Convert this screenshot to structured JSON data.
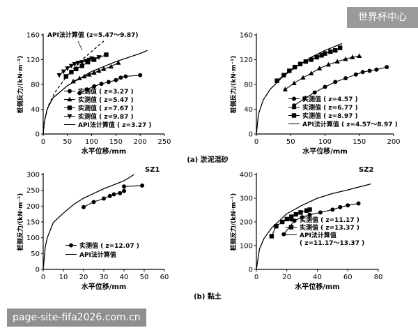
{
  "watermarks": {
    "top_right": "世界杯中心",
    "bottom_left": "page-site-fifa2026.com.cn"
  },
  "captions": {
    "a": "(a) 淤泥混砂",
    "b": "(b) 黏土"
  },
  "chart_data": [
    {
      "type": "line",
      "ylabel": "桩侧反力/(kN·m⁻¹)",
      "xlabel": "水平位移/mm",
      "xlim": [
        0,
        250
      ],
      "ylim": [
        0,
        160
      ],
      "xticks": [
        "0",
        "50",
        "100",
        "150",
        "200",
        "250"
      ],
      "yticks": [
        "0",
        "40",
        "80",
        "120",
        "160"
      ],
      "series": [
        {
          "name": "实测值 (z=3.27)",
          "marker": "circle",
          "style": "solid",
          "x": [
            75,
            90,
            105,
            120,
            135,
            150,
            160,
            170,
            200
          ],
          "y": [
            66,
            72,
            77,
            81,
            84,
            87,
            91,
            93,
            95
          ]
        },
        {
          "name": "实测值 (z=5.47)",
          "marker": "triangle",
          "style": "solid",
          "x": [
            62,
            75,
            85,
            95,
            105,
            115,
            125,
            140,
            155
          ],
          "y": [
            85,
            90,
            93,
            96,
            99,
            102,
            105,
            109,
            115
          ]
        },
        {
          "name": "实测值 (z=7.67)",
          "marker": "square",
          "style": "solid",
          "x": [
            47,
            58,
            68,
            80,
            92,
            105,
            130
          ],
          "y": [
            93,
            100,
            105,
            110,
            116,
            120,
            128
          ]
        },
        {
          "name": "实测值 (z=9.87)",
          "marker": "triangle-down",
          "style": "solid",
          "x": [
            33,
            42,
            50,
            58,
            65,
            72,
            80,
            88,
            95,
            100,
            115
          ],
          "y": [
            95,
            101,
            106,
            110,
            113,
            115,
            116,
            118,
            120,
            122,
            124
          ]
        },
        {
          "name": "API法计算值 (z=3.27)",
          "marker": "none",
          "style": "solid",
          "x": [
            0,
            2,
            8,
            20,
            50,
            100,
            150,
            200,
            215
          ],
          "y": [
            0,
            18,
            40,
            58,
            78,
            101,
            117,
            130,
            135
          ]
        },
        {
          "name": "API法计算值 (z=5.47~9.87)",
          "marker": "none",
          "style": "dashed",
          "x": [
            0,
            3,
            10,
            25,
            50,
            80,
            110,
            125
          ],
          "y": [
            0,
            22,
            45,
            68,
            95,
            120,
            140,
            150
          ]
        }
      ],
      "annotations": [
        "API法计算值 (z=5.47～9.87)"
      ],
      "legend": [
        "实测值 ( z=3.27 )",
        "实测值 ( z=5.47 )",
        "实测值 ( z=7.67 )",
        "实测值 ( z=9.87 )",
        "API法计算值 ( z=3.27 )"
      ]
    },
    {
      "type": "line",
      "ylabel": "桩侧反力/(kN·m⁻¹)",
      "xlabel": "水平位移/mm",
      "xlim": [
        0,
        200
      ],
      "ylim": [
        0,
        160
      ],
      "xticks": [
        "0",
        "50",
        "100",
        "150",
        "200"
      ],
      "yticks": [
        "0",
        "40",
        "80",
        "120",
        "160"
      ],
      "series": [
        {
          "name": "实测值 (z=4.57)",
          "marker": "circle",
          "style": "solid",
          "x": [
            55,
            70,
            85,
            100,
            115,
            130,
            145,
            155,
            165,
            175,
            190
          ],
          "y": [
            46,
            57,
            67,
            76,
            84,
            90,
            96,
            100,
            102,
            104,
            108
          ]
        },
        {
          "name": "实测值 (z=6.77)",
          "marker": "triangle",
          "style": "solid",
          "x": [
            42,
            55,
            68,
            80,
            92,
            105,
            118,
            130,
            140,
            150
          ],
          "y": [
            72,
            82,
            91,
            98,
            106,
            112,
            117,
            121,
            124,
            126
          ]
        },
        {
          "name": "实测值 (z=8.97)",
          "marker": "square",
          "style": "solid",
          "x": [
            30,
            40,
            48,
            56,
            64,
            72,
            80,
            88,
            95,
            100,
            108,
            115,
            122
          ],
          "y": [
            86,
            95,
            102,
            108,
            113,
            117,
            120,
            124,
            127,
            130,
            133,
            135,
            139
          ]
        },
        {
          "name": "API法计算值 (z=4.57~8.97)",
          "marker": "none",
          "style": "solid",
          "x": [
            0,
            3,
            10,
            20,
            40,
            60,
            80,
            100,
            125
          ],
          "y": [
            0,
            32,
            55,
            72,
            94,
            110,
            124,
            135,
            146
          ]
        }
      ],
      "legend": [
        "实测值 ( z=4.57 )",
        "实测值 ( z=6.77 )",
        "实测值 ( z=8.97 )",
        "API法计算值 ( z=4.57～8.97 )"
      ]
    },
    {
      "type": "line",
      "title": "SZ1",
      "ylabel": "桩侧反力/(kN·m⁻¹)",
      "xlabel": "水平位移/mm",
      "xlim": [
        0,
        60
      ],
      "ylim": [
        0,
        300
      ],
      "xticks": [
        "0",
        "10",
        "20",
        "30",
        "40",
        "50",
        "60"
      ],
      "yticks": [
        "0",
        "50",
        "100",
        "150",
        "200",
        "250",
        "300"
      ],
      "series": [
        {
          "name": "实测值 (z=12.07)",
          "marker": "circle",
          "style": "solid",
          "x": [
            20,
            25,
            30,
            33,
            35,
            38,
            40,
            40,
            49
          ],
          "y": [
            197,
            213,
            224,
            232,
            237,
            241,
            248,
            262,
            265
          ]
        },
        {
          "name": "API法计算值",
          "marker": "none",
          "style": "solid",
          "x": [
            0,
            1,
            2,
            5,
            10,
            15,
            20,
            30,
            40,
            45
          ],
          "y": [
            0,
            70,
            100,
            148,
            178,
            205,
            225,
            255,
            280,
            300
          ]
        }
      ],
      "legend": [
        "实测值 ( z=12.07 )",
        "API法计算值"
      ]
    },
    {
      "type": "line",
      "title": "SZ2",
      "ylabel": "桩侧反力/(kN·m⁻¹)",
      "xlabel": "水平位移/mm",
      "xlim": [
        0,
        80
      ],
      "ylim": [
        0,
        400
      ],
      "xticks": [
        "0",
        "20",
        "40",
        "60",
        "80"
      ],
      "yticks": [
        "0",
        "100",
        "200",
        "300",
        "400"
      ],
      "series": [
        {
          "name": "实测值 (z=11.17)",
          "marker": "circle",
          "style": "solid",
          "x": [
            18,
            25,
            30,
            35,
            42,
            50,
            55,
            60,
            67
          ],
          "y": [
            148,
            205,
            220,
            230,
            240,
            252,
            262,
            270,
            278
          ]
        },
        {
          "name": "实测值 (z=13.37)",
          "marker": "square",
          "style": "solid",
          "x": [
            10,
            13,
            17,
            20,
            23,
            26,
            29,
            33,
            35
          ],
          "y": [
            140,
            182,
            200,
            212,
            222,
            232,
            240,
            248,
            252
          ]
        },
        {
          "name": "API法计算值 (z=11.17~13.37)",
          "marker": "none",
          "style": "solid",
          "x": [
            0,
            2,
            5,
            10,
            20,
            30,
            40,
            50,
            60,
            75
          ],
          "y": [
            0,
            85,
            130,
            175,
            235,
            270,
            300,
            320,
            335,
            360
          ]
        }
      ],
      "legend": [
        "实测值 ( z=11.17 )",
        "实测值 ( z=13.37 )",
        "API法计算值",
        "( z=11.17～13.37 )"
      ]
    }
  ]
}
